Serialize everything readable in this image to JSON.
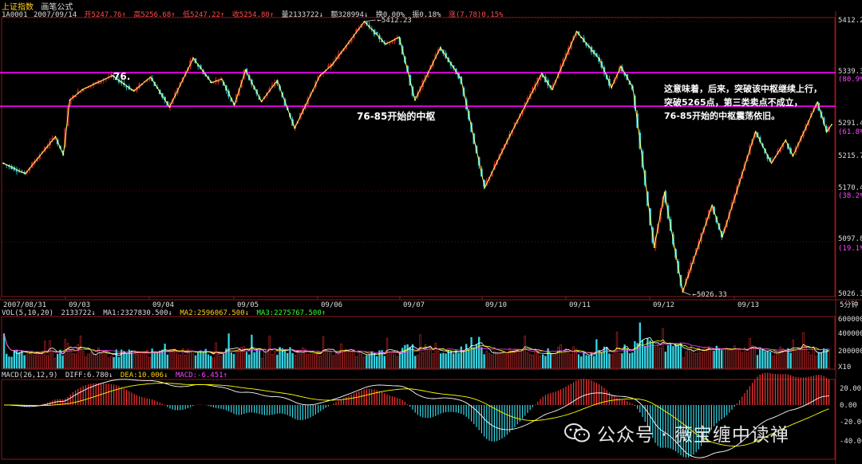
{
  "header": {
    "code": "1A0001",
    "name": "上证指数",
    "formula": "画笔公式",
    "date": "2007/09/14",
    "open": "开5247.76↑",
    "high": "高5256.68↑",
    "low": "低5247.22↑",
    "close": "收5254.80↑",
    "volume": "量2133722↓",
    "amount": "额328994↓",
    "turnover": "换0.00%",
    "amplitude": "振0.18%",
    "change": "涨(7.78)0.15%"
  },
  "annotations": {
    "label_76": "76.",
    "zhongshu": "76-85开始的中枢",
    "note_lines": [
      "这意味着，后来，突破该中枢继续上行，",
      "突破5265点，第三类卖点不成立，",
      "76-85开始的中枢震荡依旧。"
    ],
    "high_label": "5412.23",
    "low_label": "5026.33"
  },
  "price_axis": {
    "labels": [
      "5412.2",
      "5339.3",
      "(80.9%)",
      "5291.4",
      "(61.8%)",
      "5215.7",
      "5170.4",
      "(38.2%)",
      "5097.8",
      "(19.1%)",
      "5026.3"
    ]
  },
  "time_axis": {
    "labels": [
      "2007/08/31",
      "09/03",
      "09/04",
      "09/05",
      "09/06",
      "09/07",
      "09/10",
      "09/11",
      "09/12",
      "09/13"
    ],
    "period": "5分钟"
  },
  "vol_header": {
    "title": "VOL(5,10,20)",
    "value": "2133722↓",
    "ma1": "MA1:2327830.500↓",
    "ma2": "MA2:2596067.500↓",
    "ma3": "MA3:2275767.500↑"
  },
  "vol_axis": {
    "labels": [
      "600000",
      "400000",
      "200000",
      "X10"
    ]
  },
  "macd_header": {
    "title": "MACD(26,12,9)",
    "diff": "DIFF:6.780↓",
    "dea": "DEA:10.006↓",
    "macd": "MACD:-6.451↑"
  },
  "macd_axis": {
    "labels": [
      "20.00",
      "0.00",
      "-20.00",
      "-40.00"
    ]
  },
  "watermark": "公众号 · 薇宝缠中读禅",
  "chart_data": {
    "type": "line",
    "title": "上证指数 5分钟",
    "price_range": [
      5026.33,
      5412.23
    ],
    "zhongshu_lines": [
      5339.3,
      5291.4
    ],
    "colors": {
      "up": "#ff3232",
      "down": "#36d7e6",
      "stroke": "#ffff66",
      "zhongshu": "#ff00ff",
      "ma1": "#ffffff",
      "ma2": "#ffff00",
      "ma3": "#ff40ff",
      "grid": "#8b1a1a"
    },
    "pivots": [
      {
        "t": 0,
        "p": 5210
      },
      {
        "t": 28,
        "p": 5195
      },
      {
        "t": 66,
        "p": 5248
      },
      {
        "t": 76,
        "p": 5222
      },
      {
        "t": 84,
        "p": 5300
      },
      {
        "t": 100,
        "p": 5315
      },
      {
        "t": 138,
        "p": 5335
      },
      {
        "t": 165,
        "p": 5313
      },
      {
        "t": 186,
        "p": 5333
      },
      {
        "t": 210,
        "p": 5290
      },
      {
        "t": 240,
        "p": 5360
      },
      {
        "t": 263,
        "p": 5325
      },
      {
        "t": 276,
        "p": 5330
      },
      {
        "t": 292,
        "p": 5293
      },
      {
        "t": 306,
        "p": 5343
      },
      {
        "t": 326,
        "p": 5298
      },
      {
        "t": 346,
        "p": 5328
      },
      {
        "t": 368,
        "p": 5260
      },
      {
        "t": 400,
        "p": 5335
      },
      {
        "t": 415,
        "p": 5350
      },
      {
        "t": 456,
        "p": 5412.23
      },
      {
        "t": 483,
        "p": 5380
      },
      {
        "t": 500,
        "p": 5390
      },
      {
        "t": 520,
        "p": 5300
      },
      {
        "t": 552,
        "p": 5375
      },
      {
        "t": 578,
        "p": 5330
      },
      {
        "t": 608,
        "p": 5175
      },
      {
        "t": 640,
        "p": 5250
      },
      {
        "t": 680,
        "p": 5338
      },
      {
        "t": 693,
        "p": 5315
      },
      {
        "t": 724,
        "p": 5398
      },
      {
        "t": 753,
        "p": 5358
      },
      {
        "t": 768,
        "p": 5318
      },
      {
        "t": 780,
        "p": 5348
      },
      {
        "t": 795,
        "p": 5318
      },
      {
        "t": 822,
        "p": 5090
      },
      {
        "t": 835,
        "p": 5168
      },
      {
        "t": 858,
        "p": 5026.33
      },
      {
        "t": 895,
        "p": 5150
      },
      {
        "t": 908,
        "p": 5105
      },
      {
        "t": 950,
        "p": 5255
      },
      {
        "t": 970,
        "p": 5210
      },
      {
        "t": 988,
        "p": 5243
      },
      {
        "t": 997,
        "p": 5220
      },
      {
        "t": 1028,
        "p": 5297
      },
      {
        "t": 1040,
        "p": 5255
      },
      {
        "t": 1046,
        "p": 5265
      }
    ]
  }
}
